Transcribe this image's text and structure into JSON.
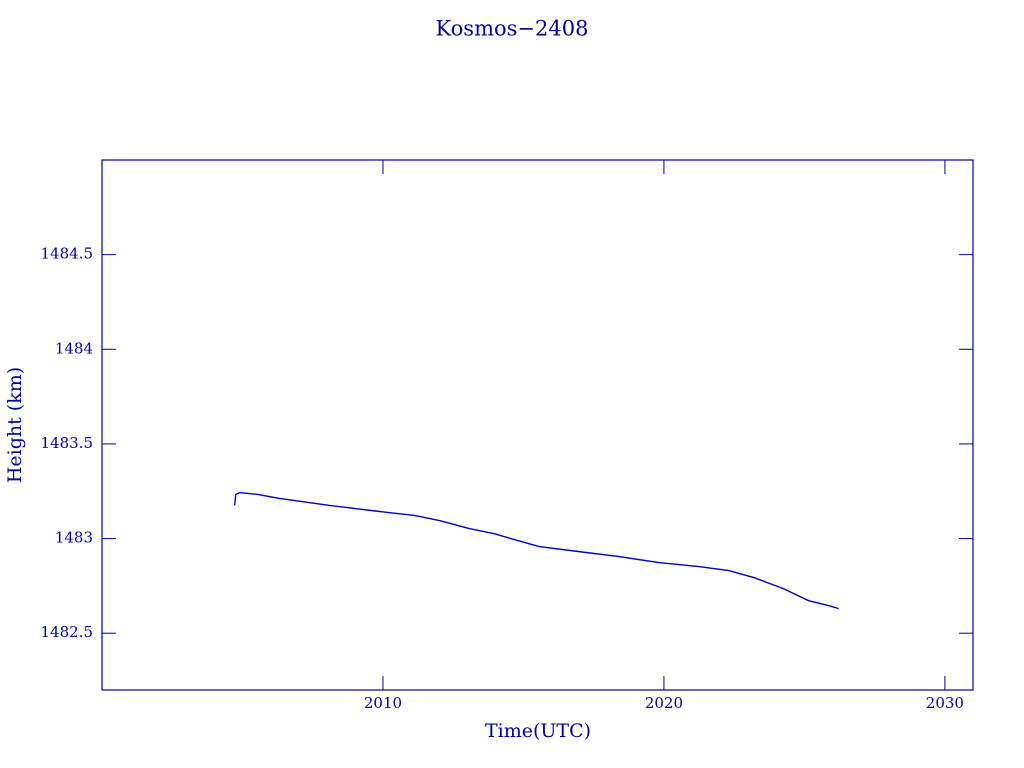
{
  "chart_data": {
    "type": "line",
    "title": "Kosmos−2408",
    "x_label": "Time(UTC)",
    "y_label": "Height (km)",
    "color": "#0000c0",
    "xlim": [
      2000,
      2031
    ],
    "ylim": [
      1482.2,
      1485
    ],
    "xticks": [
      2010,
      2020,
      2030
    ],
    "yticks": [
      1482.5,
      1483,
      1483.5,
      1484,
      1484.5
    ],
    "x": [
      2004.72,
      2004.76,
      2004.9,
      2005.54,
      2006.32,
      2008.1,
      2009.88,
      2011.12,
      2012.01,
      2013.07,
      2013.96,
      2014.67,
      2015.56,
      2016.98,
      2018.4,
      2019.82,
      2021.24,
      2022.31,
      2023.2,
      2024.26,
      2025.15,
      2025.86,
      2026.22
    ],
    "values": [
      1483.175,
      1483.233,
      1483.243,
      1483.233,
      1483.212,
      1483.175,
      1483.143,
      1483.122,
      1483.095,
      1483.053,
      1483.026,
      1482.995,
      1482.958,
      1482.931,
      1482.905,
      1482.873,
      1482.852,
      1482.831,
      1482.794,
      1482.735,
      1482.672,
      1482.646,
      1482.63
    ]
  }
}
